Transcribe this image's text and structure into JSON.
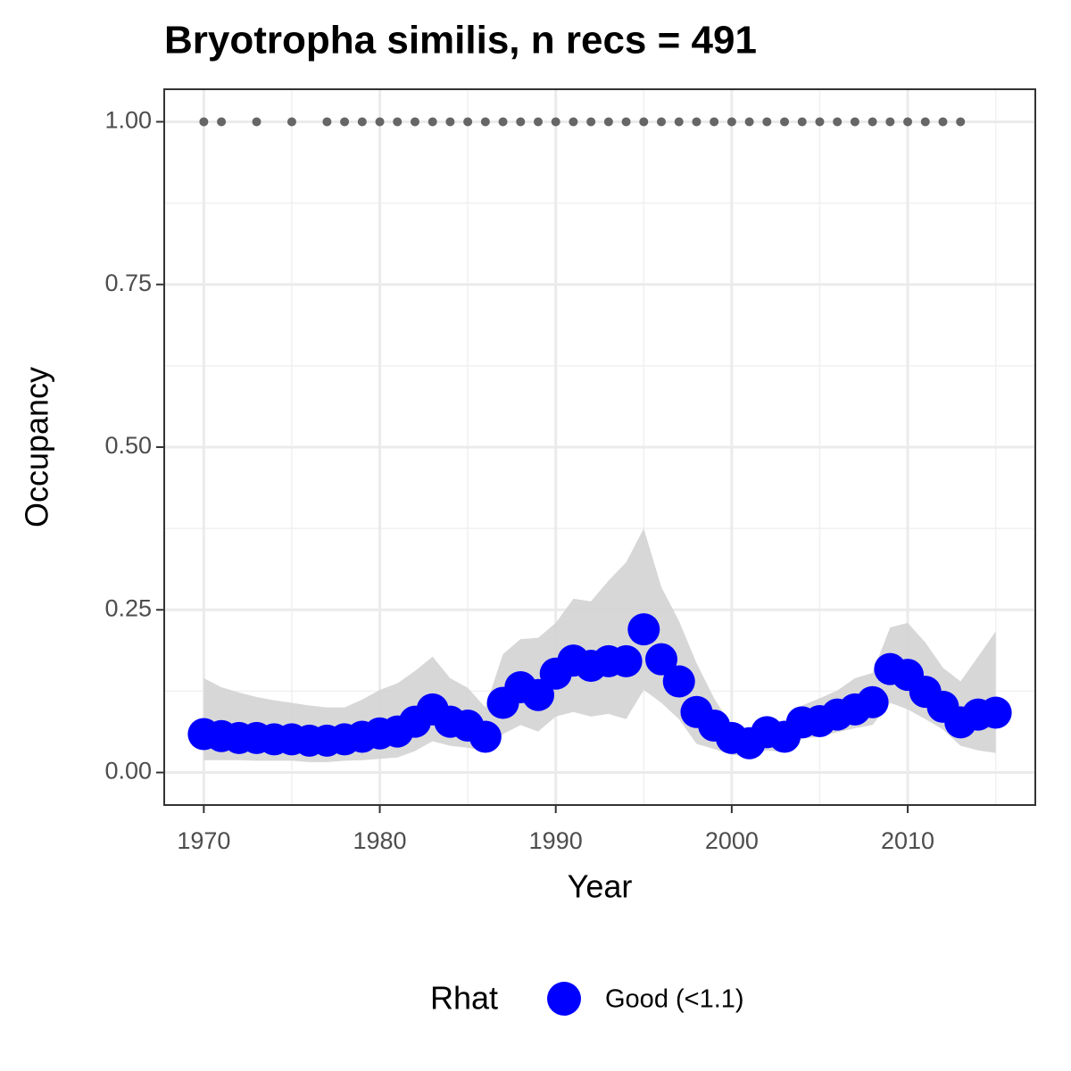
{
  "chart_data": {
    "type": "line",
    "title": "Bryotropha similis, n recs = 491",
    "x_label": "Year",
    "y_label": "Occupancy",
    "legend_title": "Rhat",
    "x": [
      1970,
      1971,
      1972,
      1973,
      1974,
      1975,
      1976,
      1977,
      1978,
      1979,
      1980,
      1981,
      1982,
      1983,
      1984,
      1985,
      1986,
      1987,
      1988,
      1989,
      1990,
      1991,
      1992,
      1993,
      1994,
      1995,
      1996,
      1997,
      1998,
      1999,
      2000,
      2001,
      2002,
      2003,
      2004,
      2005,
      2006,
      2007,
      2008,
      2009,
      2010,
      2011,
      2012,
      2013,
      2014,
      2015
    ],
    "series": [
      {
        "name": "Good (<1.1)",
        "color": "#0000ff",
        "values": [
          0.059,
          0.056,
          0.053,
          0.053,
          0.051,
          0.051,
          0.049,
          0.049,
          0.051,
          0.055,
          0.06,
          0.063,
          0.078,
          0.097,
          0.078,
          0.072,
          0.055,
          0.107,
          0.131,
          0.119,
          0.152,
          0.172,
          0.164,
          0.171,
          0.171,
          0.22,
          0.174,
          0.14,
          0.093,
          0.072,
          0.053,
          0.045,
          0.062,
          0.055,
          0.077,
          0.079,
          0.089,
          0.097,
          0.108,
          0.159,
          0.15,
          0.124,
          0.101,
          0.077,
          0.089,
          0.092
        ],
        "lower": [
          0.019,
          0.019,
          0.019,
          0.018,
          0.018,
          0.018,
          0.016,
          0.016,
          0.018,
          0.019,
          0.021,
          0.023,
          0.033,
          0.048,
          0.041,
          0.038,
          0.034,
          0.059,
          0.073,
          0.063,
          0.086,
          0.093,
          0.086,
          0.09,
          0.082,
          0.127,
          0.107,
          0.082,
          0.044,
          0.036,
          0.027,
          0.025,
          0.034,
          0.031,
          0.052,
          0.055,
          0.062,
          0.068,
          0.073,
          0.107,
          0.097,
          0.082,
          0.066,
          0.041,
          0.034,
          0.03
        ],
        "upper": [
          0.145,
          0.131,
          0.123,
          0.116,
          0.111,
          0.107,
          0.103,
          0.1,
          0.1,
          0.112,
          0.127,
          0.137,
          0.156,
          0.178,
          0.145,
          0.13,
          0.1,
          0.182,
          0.205,
          0.207,
          0.23,
          0.267,
          0.263,
          0.295,
          0.323,
          0.375,
          0.285,
          0.233,
          0.168,
          0.114,
          0.071,
          0.055,
          0.079,
          0.073,
          0.103,
          0.114,
          0.126,
          0.145,
          0.153,
          0.223,
          0.23,
          0.2,
          0.161,
          0.14,
          0.178,
          0.217
        ]
      }
    ],
    "ribbon_color": "#d3d3d3",
    "record_color": "#666666",
    "record_years": [
      1970,
      1971,
      1973,
      1975,
      1977,
      1978,
      1979,
      1980,
      1981,
      1982,
      1983,
      1984,
      1985,
      1986,
      1987,
      1988,
      1989,
      1990,
      1991,
      1992,
      1993,
      1994,
      1995,
      1996,
      1997,
      1998,
      1999,
      2000,
      2001,
      2002,
      2003,
      2004,
      2005,
      2006,
      2007,
      2008,
      2009,
      2010,
      2011,
      2012,
      2013
    ],
    "record_values": [
      1,
      1,
      1,
      1,
      1,
      1,
      1,
      1,
      1,
      1,
      1,
      1,
      1,
      1,
      1,
      1,
      1,
      1,
      1,
      1,
      1,
      1,
      1,
      1,
      1,
      1,
      1,
      1,
      1,
      1,
      1,
      1,
      1,
      1,
      1,
      1,
      1,
      1,
      1,
      1,
      1
    ],
    "xlim": [
      1967.75,
      2017.25
    ],
    "ylim": [
      -0.05,
      1.05
    ],
    "xticks": [
      1970,
      1980,
      1990,
      2000,
      2010
    ],
    "yticks": [
      {
        "value": 0,
        "label": "0.00"
      },
      0.25,
      {
        "value": 0.5,
        "label": "0.50"
      },
      0.75,
      {
        "value": 1,
        "label": "1.00"
      }
    ],
    "minor_xticks": [
      1975,
      1985,
      1995,
      2005,
      2015
    ],
    "minor_yticks": [
      0.125,
      0.375,
      0.625,
      0.875
    ],
    "grid": true,
    "legend_position": "bottom"
  }
}
